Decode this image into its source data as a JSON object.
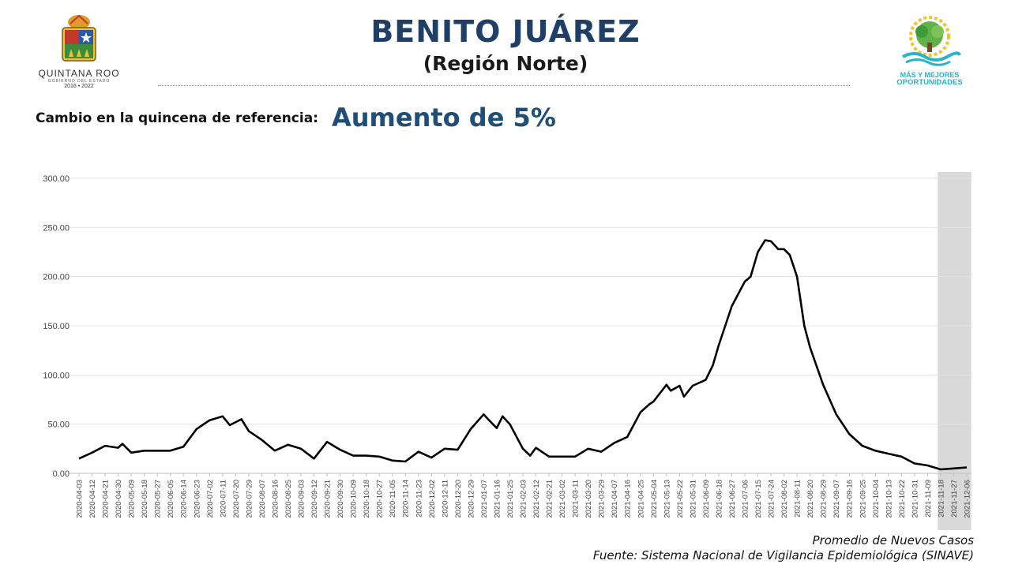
{
  "header": {
    "title": "BENITO JUÁREZ",
    "subtitle": "(Región Norte)",
    "left_logo": {
      "org": "QUINTANA ROO",
      "sub": "GOBIERNO DEL ESTADO",
      "years": "2016 • 2022"
    },
    "right_logo": {
      "line1": "MÁS Y MEJORES",
      "line2": "OPORTUNIDADES"
    }
  },
  "change": {
    "label": "Cambio en la quincena de referencia:",
    "value": "Aumento de 5%"
  },
  "footer": {
    "series_note": "Promedio de Nuevos Casos",
    "source": "Fuente: Sistema Nacional de Vigilancia Epidemiológica (SINAVE)"
  },
  "colors": {
    "title": "#1f3f66",
    "accent": "#1f4e79",
    "line": "#000000",
    "highlight": "#d9d9d9",
    "logo_teal": "#2bb3c8"
  },
  "chart_data": {
    "type": "line",
    "title": "",
    "xlabel": "",
    "ylabel": "",
    "ylim": [
      0,
      300
    ],
    "y_ticks": [
      "0.00",
      "50.00",
      "100.00",
      "150.00",
      "200.00",
      "250.00",
      "300.00"
    ],
    "x_range": [
      "2020-04-03",
      "2021-12-06"
    ],
    "x_tick_labels": [
      "2020-04-03",
      "2020-04-12",
      "2020-04-21",
      "2020-04-30",
      "2020-05-09",
      "2020-05-18",
      "2020-05-27",
      "2020-06-05",
      "2020-06-14",
      "2020-06-23",
      "2020-07-02",
      "2020-07-11",
      "2020-07-20",
      "2020-07-29",
      "2020-08-07",
      "2020-08-16",
      "2020-08-25",
      "2020-09-03",
      "2020-09-12",
      "2020-09-21",
      "2020-09-30",
      "2020-10-09",
      "2020-10-18",
      "2020-10-27",
      "2020-11-05",
      "2020-11-14",
      "2020-11-23",
      "2020-12-02",
      "2020-12-11",
      "2020-12-20",
      "2020-12-29",
      "2021-01-07",
      "2021-01-16",
      "2021-01-25",
      "2021-02-03",
      "2021-02-12",
      "2021-02-21",
      "2021-03-02",
      "2021-03-11",
      "2021-03-20",
      "2021-03-29",
      "2021-04-07",
      "2021-04-16",
      "2021-04-25",
      "2021-05-04",
      "2021-05-13",
      "2021-05-22",
      "2021-05-31",
      "2021-06-09",
      "2021-06-18",
      "2021-06-27",
      "2021-07-06",
      "2021-07-15",
      "2021-07-24",
      "2021-08-02",
      "2021-08-11",
      "2021-08-20",
      "2021-08-29",
      "2021-09-07",
      "2021-09-16",
      "2021-09-25",
      "2021-10-04",
      "2021-10-13",
      "2021-10-22",
      "2021-10-31",
      "2021-11-09",
      "2021-11-18",
      "2021-11-27",
      "2021-12-06"
    ],
    "highlight_range": [
      "2021-11-16",
      "2021-12-08"
    ],
    "grid": "horizontal",
    "legend": "none",
    "series": [
      {
        "x": [
          "2020-04-03",
          "2020-04-12",
          "2020-04-21",
          "2020-04-30",
          "2020-05-03",
          "2020-05-09",
          "2020-05-18",
          "2020-05-27",
          "2020-06-05",
          "2020-06-14",
          "2020-06-23",
          "2020-07-02",
          "2020-07-11",
          "2020-07-16",
          "2020-07-24",
          "2020-07-29",
          "2020-08-07",
          "2020-08-16",
          "2020-08-25",
          "2020-09-03",
          "2020-09-12",
          "2020-09-21",
          "2020-09-30",
          "2020-10-09",
          "2020-10-18",
          "2020-10-27",
          "2020-11-05",
          "2020-11-14",
          "2020-11-23",
          "2020-12-02",
          "2020-12-11",
          "2020-12-20",
          "2020-12-29",
          "2021-01-07",
          "2021-01-10",
          "2021-01-16",
          "2021-01-20",
          "2021-01-25",
          "2021-02-03",
          "2021-02-08",
          "2021-02-12",
          "2021-02-21",
          "2021-03-02",
          "2021-03-11",
          "2021-03-20",
          "2021-03-29",
          "2021-04-07",
          "2021-04-16",
          "2021-04-25",
          "2021-05-01",
          "2021-05-04",
          "2021-05-13",
          "2021-05-16",
          "2021-05-22",
          "2021-05-25",
          "2021-05-31",
          "2021-06-09",
          "2021-06-14",
          "2021-06-18",
          "2021-06-27",
          "2021-07-06",
          "2021-07-10",
          "2021-07-15",
          "2021-07-20",
          "2021-07-24",
          "2021-07-29",
          "2021-08-02",
          "2021-08-06",
          "2021-08-11",
          "2021-08-16",
          "2021-08-20",
          "2021-08-29",
          "2021-09-07",
          "2021-09-16",
          "2021-09-25",
          "2021-10-04",
          "2021-10-13",
          "2021-10-22",
          "2021-10-31",
          "2021-11-09",
          "2021-11-18",
          "2021-11-27",
          "2021-12-06"
        ],
        "values": [
          15,
          21,
          28,
          26,
          30,
          21,
          23,
          23,
          23,
          27,
          45,
          54,
          58,
          49,
          55,
          43,
          34,
          23,
          29,
          25,
          15,
          32,
          24,
          18,
          18,
          17,
          13,
          12,
          22,
          16,
          25,
          24,
          45,
          60,
          55,
          46,
          58,
          50,
          25,
          18,
          26,
          17,
          17,
          17,
          25,
          22,
          31,
          37,
          62,
          70,
          73,
          90,
          84,
          89,
          78,
          89,
          95,
          110,
          130,
          170,
          195,
          200,
          225,
          237,
          236,
          228,
          228,
          222,
          200,
          150,
          128,
          90,
          60,
          40,
          28,
          23,
          20,
          17,
          10,
          8,
          4,
          5,
          6
        ]
      }
    ]
  }
}
